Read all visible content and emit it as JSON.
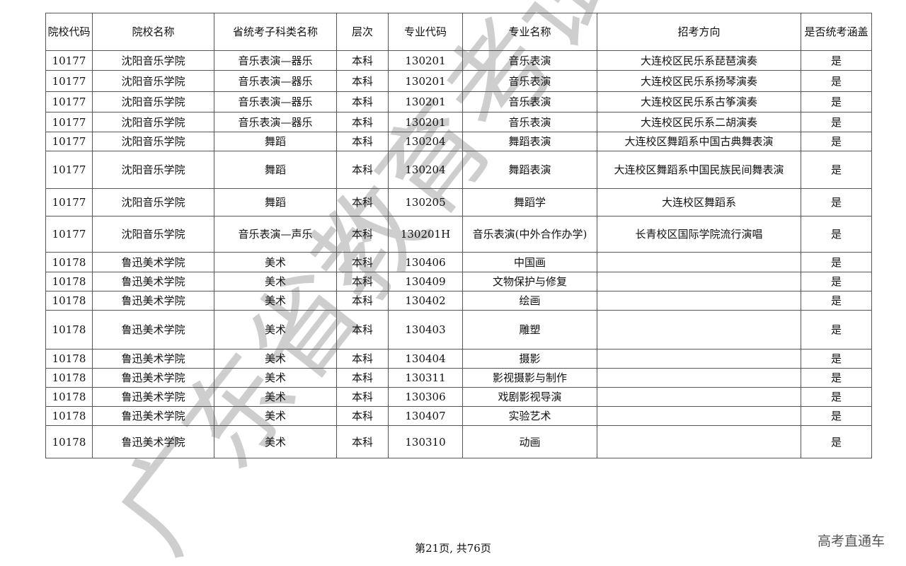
{
  "table": {
    "headers": [
      "院校代码",
      "院校名称",
      "省统考子科类名称",
      "层次",
      "专业代码",
      "专业名称",
      "招考方向",
      "是否统考涵盖"
    ],
    "rows": [
      [
        "10177",
        "沈阳音乐学院",
        "音乐表演—器乐",
        "本科",
        "130201",
        "音乐表演",
        "大连校区民乐系琵琶演奏",
        "是"
      ],
      [
        "10177",
        "沈阳音乐学院",
        "音乐表演—器乐",
        "本科",
        "130201",
        "音乐表演",
        "大连校区民乐系扬琴演奏",
        "是"
      ],
      [
        "10177",
        "沈阳音乐学院",
        "音乐表演—器乐",
        "本科",
        "130201",
        "音乐表演",
        "大连校区民乐系古筝演奏",
        "是"
      ],
      [
        "10177",
        "沈阳音乐学院",
        "音乐表演—器乐",
        "本科",
        "130201",
        "音乐表演",
        "大连校区民乐系二胡演奏",
        "是"
      ],
      [
        "10177",
        "沈阳音乐学院",
        "舞蹈",
        "本科",
        "130204",
        "舞蹈表演",
        "大连校区舞蹈系中国古典舞表演",
        "是"
      ],
      [
        "10177",
        "沈阳音乐学院",
        "舞蹈",
        "本科",
        "130204",
        "舞蹈表演",
        "大连校区舞蹈系中国民族民间舞表演",
        "是"
      ],
      [
        "10177",
        "沈阳音乐学院",
        "舞蹈",
        "本科",
        "130205",
        "舞蹈学",
        "大连校区舞蹈系",
        "是"
      ],
      [
        "10177",
        "沈阳音乐学院",
        "音乐表演—声乐",
        "本科",
        "130201H",
        "音乐表演(中外合作办学)",
        "长青校区国际学院流行演唱",
        "是"
      ],
      [
        "10178",
        "鲁迅美术学院",
        "美术",
        "本科",
        "130406",
        "中国画",
        "",
        "是"
      ],
      [
        "10178",
        "鲁迅美术学院",
        "美术",
        "本科",
        "130409",
        "文物保护与修复",
        "",
        "是"
      ],
      [
        "10178",
        "鲁迅美术学院",
        "美术",
        "本科",
        "130402",
        "绘画",
        "",
        "是"
      ],
      [
        "10178",
        "鲁迅美术学院",
        "美术",
        "本科",
        "130403",
        "雕塑",
        "",
        "是"
      ],
      [
        "10178",
        "鲁迅美术学院",
        "美术",
        "本科",
        "130404",
        "摄影",
        "",
        "是"
      ],
      [
        "10178",
        "鲁迅美术学院",
        "美术",
        "本科",
        "130311",
        "影视摄影与制作",
        "",
        "是"
      ],
      [
        "10178",
        "鲁迅美术学院",
        "美术",
        "本科",
        "130306",
        "戏剧影视导演",
        "",
        "是"
      ],
      [
        "10178",
        "鲁迅美术学院",
        "美术",
        "本科",
        "130407",
        "实验艺术",
        "",
        "是"
      ],
      [
        "10178",
        "鲁迅美术学院",
        "美术",
        "本科",
        "130310",
        "动画",
        "",
        "是"
      ]
    ]
  },
  "watermark": "广东省教育考试院",
  "footer": {
    "page": "第21页, 共76页"
  },
  "brand": "高考直通车"
}
